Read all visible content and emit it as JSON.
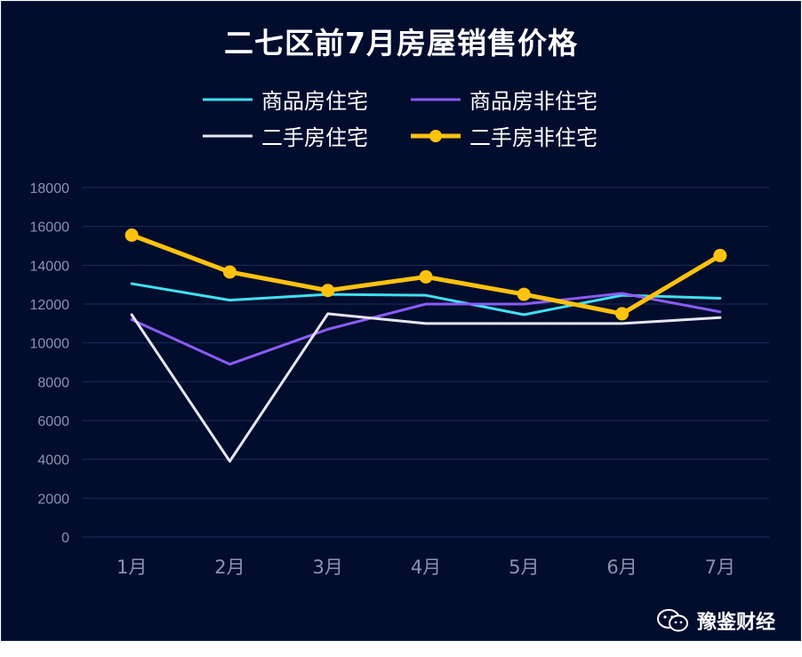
{
  "chart_data": {
    "type": "line",
    "title": "二七区前7月房屋销售价格",
    "xlabel": "",
    "ylabel": "",
    "categories": [
      "1月",
      "2月",
      "3月",
      "4月",
      "5月",
      "6月",
      "7月"
    ],
    "ylim": [
      0,
      18000
    ],
    "yticks": [
      "0",
      "2000",
      "4000",
      "6000",
      "8000",
      "10000",
      "12000",
      "14000",
      "16000",
      "18000"
    ],
    "grid": true,
    "legend_position": "top",
    "series": [
      {
        "name": "商品房住宅",
        "color": "#40e0f0",
        "values": [
          13050,
          12200,
          12500,
          12450,
          11450,
          12450,
          12300
        ],
        "markers": false
      },
      {
        "name": "商品房非住宅",
        "color": "#8a5cf6",
        "values": [
          11200,
          8900,
          10700,
          12000,
          12000,
          12550,
          11600
        ],
        "markers": false
      },
      {
        "name": "二手房住宅",
        "color": "#e6e6f0",
        "values": [
          11450,
          3900,
          11500,
          11000,
          11000,
          11000,
          11300
        ],
        "markers": false
      },
      {
        "name": "二手房非住宅",
        "color": "#ffc20e",
        "values": [
          15550,
          13650,
          12700,
          13400,
          12500,
          11500,
          14500
        ],
        "markers": true
      }
    ]
  },
  "watermark": {
    "text": "豫鉴财经",
    "icon": "wechat-icon"
  }
}
